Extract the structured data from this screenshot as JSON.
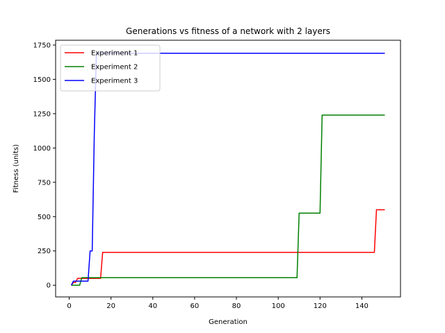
{
  "chart_data": {
    "type": "line",
    "title": "Generations vs fitness of a network with 2 layers",
    "xlabel": "Generation",
    "ylabel": "Fitness (units)",
    "xlim": [
      -6.5,
      158.5
    ],
    "ylim": [
      -85,
      1785
    ],
    "xticks": [
      0,
      20,
      40,
      60,
      80,
      100,
      120,
      140
    ],
    "yticks": [
      0,
      250,
      500,
      750,
      1000,
      1250,
      1500,
      1750
    ],
    "legend_position": "upper-left",
    "grid": false,
    "series": [
      {
        "name": "Experiment 1",
        "color": "#ff0000",
        "points": [
          [
            1,
            0
          ],
          [
            2,
            20
          ],
          [
            3,
            20
          ],
          [
            4,
            50
          ],
          [
            15,
            50
          ],
          [
            16,
            240
          ],
          [
            146,
            240
          ],
          [
            147,
            550
          ],
          [
            151,
            550
          ]
        ]
      },
      {
        "name": "Experiment 2",
        "color": "#008000",
        "points": [
          [
            1,
            0
          ],
          [
            5,
            0
          ],
          [
            6,
            55
          ],
          [
            109,
            55
          ],
          [
            110,
            525
          ],
          [
            120,
            525
          ],
          [
            121,
            1240
          ],
          [
            151,
            1240
          ]
        ]
      },
      {
        "name": "Experiment 3",
        "color": "#0000ff",
        "points": [
          [
            1,
            0
          ],
          [
            2,
            30
          ],
          [
            9,
            30
          ],
          [
            10,
            250
          ],
          [
            11,
            250
          ],
          [
            12,
            1100
          ],
          [
            13,
            1690
          ],
          [
            151,
            1690
          ]
        ]
      }
    ]
  }
}
